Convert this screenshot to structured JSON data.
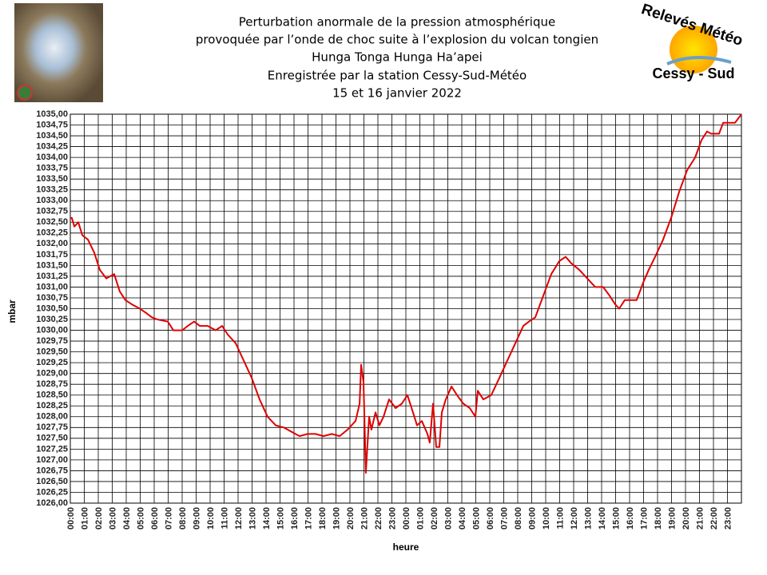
{
  "chart_data": {
    "type": "line",
    "title": [
      "Perturbation anormale de la pression atmosphérique",
      "provoquée par l’onde de choc suite à l’explosion du volcan tongien",
      "Hunga Tonga Hunga Ha’apei",
      "Enregistrée par la station Cessy-Sud-Météo",
      "15 et 16 janvier 2022"
    ],
    "logo": [
      "Relevés Météo",
      "Cessy - Sud"
    ],
    "xlabel": "heure",
    "ylabel": "mbar",
    "color": "#e00000",
    "grid": true,
    "xlim": [
      0,
      48
    ],
    "ylim": [
      1026,
      1035
    ],
    "x": [
      0,
      0.11,
      0.29,
      0.57,
      0.86,
      1.26,
      1.71,
      2.11,
      2.57,
      3.14,
      3.54,
      3.94,
      4.4,
      4.97,
      5.43,
      5.83,
      6.23,
      6.97,
      7.37,
      8.0,
      8.4,
      8.86,
      9.26,
      9.83,
      10.4,
      10.86,
      11.26,
      11.83,
      12.4,
      12.97,
      13.54,
      14.11,
      14.69,
      15.26,
      15.83,
      16.4,
      16.97,
      17.54,
      18.11,
      18.69,
      19.26,
      19.83,
      20.4,
      20.69,
      20.8,
      20.97,
      21.14,
      21.37,
      21.54,
      21.83,
      22.11,
      22.4,
      22.8,
      23.26,
      23.71,
      24.11,
      24.51,
      24.8,
      25.14,
      25.54,
      25.71,
      25.94,
      26.17,
      26.4,
      26.57,
      26.86,
      27.26,
      27.66,
      28.11,
      28.57,
      28.97,
      29.14,
      29.54,
      30.11,
      30.69,
      31.26,
      31.83,
      32.4,
      32.8,
      33.26,
      33.83,
      34.4,
      34.97,
      35.43,
      35.83,
      36.4,
      36.97,
      37.54,
      38.11,
      38.57,
      38.97,
      39.26,
      39.66,
      40.11,
      40.51,
      40.97,
      41.37,
      41.83,
      42.4,
      42.97,
      43.54,
      44.11,
      44.69,
      45.14,
      45.54,
      45.83,
      46.4,
      46.69,
      47.14,
      47.54,
      48
    ],
    "values": [
      1032.6,
      1032.6,
      1032.4,
      1032.5,
      1032.2,
      1032.1,
      1031.8,
      1031.4,
      1031.2,
      1031.3,
      1030.9,
      1030.7,
      1030.6,
      1030.5,
      1030.4,
      1030.3,
      1030.25,
      1030.2,
      1030.0,
      1030.0,
      1030.1,
      1030.2,
      1030.1,
      1030.1,
      1030.0,
      1030.1,
      1029.9,
      1029.7,
      1029.3,
      1028.9,
      1028.4,
      1028.0,
      1027.8,
      1027.75,
      1027.65,
      1027.55,
      1027.6,
      1027.6,
      1027.55,
      1027.6,
      1027.55,
      1027.7,
      1027.9,
      1028.3,
      1029.2,
      1028.8,
      1026.7,
      1028.0,
      1027.7,
      1028.1,
      1027.8,
      1028.0,
      1028.4,
      1028.2,
      1028.3,
      1028.5,
      1028.1,
      1027.8,
      1027.9,
      1027.6,
      1027.4,
      1028.3,
      1027.3,
      1027.3,
      1028.1,
      1028.4,
      1028.7,
      1028.5,
      1028.3,
      1028.2,
      1028.0,
      1028.6,
      1028.4,
      1028.5,
      1028.9,
      1029.3,
      1029.7,
      1030.1,
      1030.2,
      1030.3,
      1030.8,
      1031.3,
      1031.6,
      1031.7,
      1031.55,
      1031.4,
      1031.2,
      1031.0,
      1031.0,
      1030.8,
      1030.6,
      1030.5,
      1030.7,
      1030.7,
      1030.7,
      1031.1,
      1031.4,
      1031.7,
      1032.1,
      1032.6,
      1033.2,
      1033.7,
      1034.0,
      1034.4,
      1034.6,
      1034.55,
      1034.55,
      1034.8,
      1034.8,
      1034.8,
      1035.0
    ],
    "yticks": [
      {
        "value": 1026,
        "label": "1026,00"
      },
      {
        "value": 1026.25,
        "label": "1026,25"
      },
      {
        "value": 1026.5,
        "label": "1026,50"
      },
      {
        "value": 1026.75,
        "label": "1026,75"
      },
      {
        "value": 1027,
        "label": "1027,00"
      },
      {
        "value": 1027.25,
        "label": "1027,25"
      },
      {
        "value": 1027.5,
        "label": "1027,50"
      },
      {
        "value": 1027.75,
        "label": "1027,75"
      },
      {
        "value": 1028,
        "label": "1028,00"
      },
      {
        "value": 1028.25,
        "label": "1028,25"
      },
      {
        "value": 1028.5,
        "label": "1028,50"
      },
      {
        "value": 1028.75,
        "label": "1028,75"
      },
      {
        "value": 1029,
        "label": "1029,00"
      },
      {
        "value": 1029.25,
        "label": "1029,25"
      },
      {
        "value": 1029.5,
        "label": "1029,50"
      },
      {
        "value": 1029.75,
        "label": "1029,75"
      },
      {
        "value": 1030,
        "label": "1030,00"
      },
      {
        "value": 1030.25,
        "label": "1030,25"
      },
      {
        "value": 1030.5,
        "label": "1030,50"
      },
      {
        "value": 1030.75,
        "label": "1030,75"
      },
      {
        "value": 1031,
        "label": "1031,00"
      },
      {
        "value": 1031.25,
        "label": "1031,25"
      },
      {
        "value": 1031.5,
        "label": "1031,50"
      },
      {
        "value": 1031.75,
        "label": "1031,75"
      },
      {
        "value": 1032,
        "label": "1032,00"
      },
      {
        "value": 1032.25,
        "label": "1032,25"
      },
      {
        "value": 1032.5,
        "label": "1032,50"
      },
      {
        "value": 1032.75,
        "label": "1032,75"
      },
      {
        "value": 1033,
        "label": "1033,00"
      },
      {
        "value": 1033.25,
        "label": "1033,25"
      },
      {
        "value": 1033.5,
        "label": "1033,50"
      },
      {
        "value": 1033.75,
        "label": "1033,75"
      },
      {
        "value": 1034,
        "label": "1034,00"
      },
      {
        "value": 1034.25,
        "label": "1034,25"
      },
      {
        "value": 1034.5,
        "label": "1034,50"
      },
      {
        "value": 1034.75,
        "label": "1034,75"
      },
      {
        "value": 1035,
        "label": "1035,00"
      }
    ],
    "xticks": [
      {
        "value": 0,
        "label": "00:00"
      },
      {
        "value": 1,
        "label": "01:00"
      },
      {
        "value": 2,
        "label": "02:00"
      },
      {
        "value": 3,
        "label": "03:00"
      },
      {
        "value": 4,
        "label": "04:00"
      },
      {
        "value": 5,
        "label": "05:00"
      },
      {
        "value": 6,
        "label": "06:00"
      },
      {
        "value": 7,
        "label": "07:00"
      },
      {
        "value": 8,
        "label": "08:00"
      },
      {
        "value": 9,
        "label": "09:00"
      },
      {
        "value": 10,
        "label": "10:00"
      },
      {
        "value": 11,
        "label": "11:00"
      },
      {
        "value": 12,
        "label": "12:00"
      },
      {
        "value": 13,
        "label": "13:00"
      },
      {
        "value": 14,
        "label": "14:00"
      },
      {
        "value": 15,
        "label": "15:00"
      },
      {
        "value": 16,
        "label": "16:00"
      },
      {
        "value": 17,
        "label": "17:00"
      },
      {
        "value": 18,
        "label": "18:00"
      },
      {
        "value": 19,
        "label": "19:00"
      },
      {
        "value": 20,
        "label": "20:00"
      },
      {
        "value": 21,
        "label": "21:00"
      },
      {
        "value": 22,
        "label": "22:00"
      },
      {
        "value": 23,
        "label": "23:00"
      },
      {
        "value": 24,
        "label": "00:00"
      },
      {
        "value": 25,
        "label": "01:00"
      },
      {
        "value": 26,
        "label": "02:00"
      },
      {
        "value": 27,
        "label": "03:00"
      },
      {
        "value": 28,
        "label": "04:00"
      },
      {
        "value": 29,
        "label": "05:00"
      },
      {
        "value": 30,
        "label": "06:00"
      },
      {
        "value": 31,
        "label": "07:00"
      },
      {
        "value": 32,
        "label": "08:00"
      },
      {
        "value": 33,
        "label": "09:00"
      },
      {
        "value": 34,
        "label": "10:00"
      },
      {
        "value": 35,
        "label": "11:00"
      },
      {
        "value": 36,
        "label": "12:00"
      },
      {
        "value": 37,
        "label": "13:00"
      },
      {
        "value": 38,
        "label": "14:00"
      },
      {
        "value": 39,
        "label": "15:00"
      },
      {
        "value": 40,
        "label": "16:00"
      },
      {
        "value": 41,
        "label": "17:00"
      },
      {
        "value": 42,
        "label": "18:00"
      },
      {
        "value": 43,
        "label": "19:00"
      },
      {
        "value": 44,
        "label": "20:00"
      },
      {
        "value": 45,
        "label": "21:00"
      },
      {
        "value": 46,
        "label": "22:00"
      },
      {
        "value": 47,
        "label": "23:00"
      }
    ]
  }
}
